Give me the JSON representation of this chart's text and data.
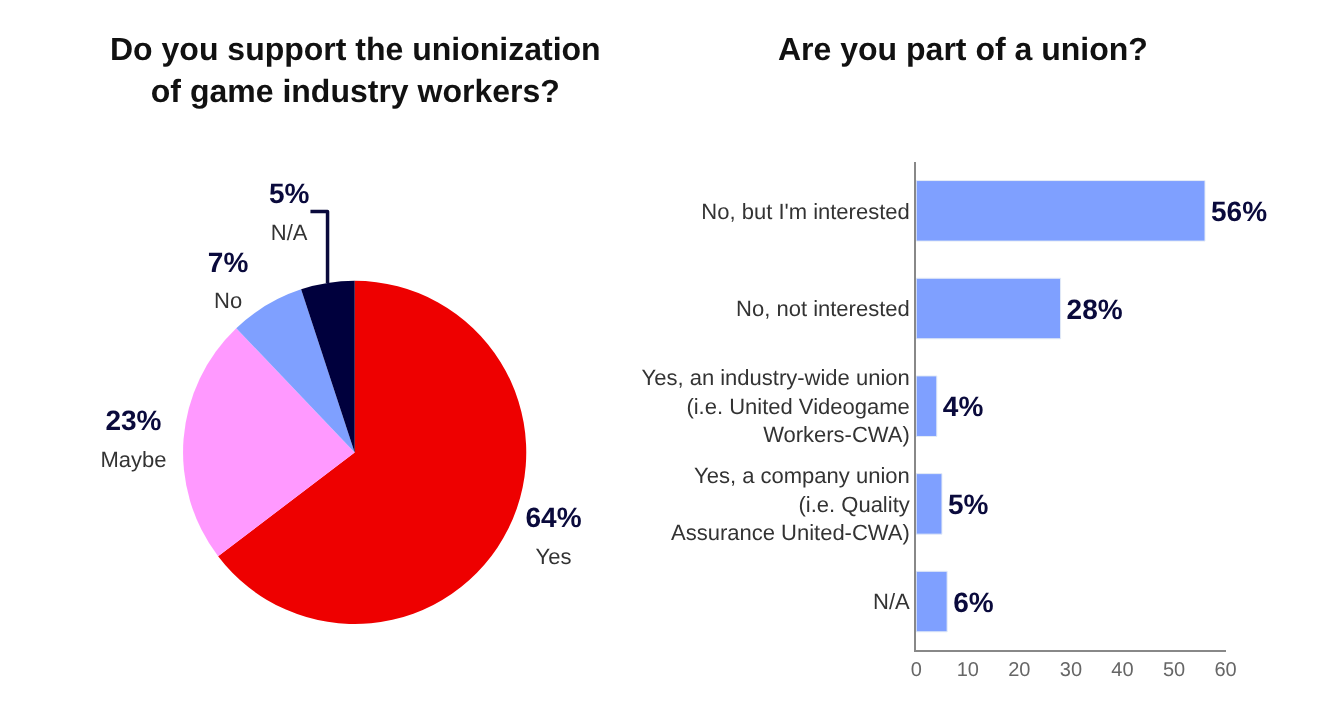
{
  "chart_data": [
    {
      "type": "pie",
      "title": "Do you support the unionization\nof game industry workers?",
      "categories": [
        "Yes",
        "Maybe",
        "No",
        "N/A"
      ],
      "values": [
        64,
        23,
        7,
        5
      ],
      "colors": [
        "#ee0000",
        "#ff99ff",
        "#7fa0ff",
        "#00003d"
      ],
      "value_labels": [
        "64%",
        "23%",
        "7%",
        "5%"
      ]
    },
    {
      "type": "bar",
      "orientation": "horizontal",
      "title": "Are you part of a union?",
      "categories": [
        "No, but I'm interested",
        "No, not interested",
        "Yes, an industry-wide union\n(i.e. United Videogame\nWorkers-CWA)",
        "Yes, a company union\n(i.e. Quality\nAssurance United-CWA)",
        "N/A"
      ],
      "values": [
        56,
        28,
        4,
        5,
        6
      ],
      "color": "#7fa0ff",
      "value_labels": [
        "56%",
        "28%",
        "4%",
        "5%",
        "6%"
      ],
      "xlim": [
        0,
        60
      ],
      "xticks": [
        0,
        10,
        20,
        30,
        40,
        50,
        60
      ]
    }
  ]
}
